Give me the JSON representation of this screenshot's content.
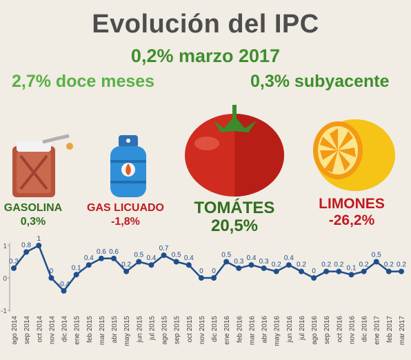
{
  "title": "Evolución del IPC",
  "headline": "0,2% marzo 2017",
  "stats": {
    "twelve_months": "2,7% doce meses",
    "core": "0,3% subyacente"
  },
  "items": [
    {
      "name": "GASOLINA",
      "value": "0,3%",
      "icon": "fuel-can-icon"
    },
    {
      "name": "GAS LICUADO",
      "value": "-1,8%",
      "icon": "gas-cylinder-icon"
    },
    {
      "name": "TOMÁTES",
      "value": "20,5%",
      "icon": "tomato-icon"
    },
    {
      "name": "LIMONES",
      "value": "-26,2%",
      "icon": "lemon-icon"
    }
  ],
  "colors": {
    "line": "#1f4e8c",
    "point": "#1f4e8c",
    "label": "#1f4e8c",
    "green_text": "#2f6e1e",
    "red_text": "#c0191f"
  },
  "chart_data": {
    "type": "line",
    "title": "",
    "xlabel": "",
    "ylabel": "",
    "ylim": [
      -1,
      1
    ],
    "yticks": [
      -1,
      0,
      1
    ],
    "grid": false,
    "categories": [
      "ago 2014",
      "sep 2014",
      "oct 2014",
      "nov 2014",
      "dic 2014",
      "ene 2015",
      "feb 2015",
      "mar 2015",
      "abr 2015",
      "may 2015",
      "jun 2015",
      "jul 2015",
      "ago 2015",
      "sep 2015",
      "oct 2015",
      "nov 2015",
      "dic 2015",
      "ene 2016",
      "feb 2016",
      "mar 2016",
      "abr 2016",
      "may 2016",
      "jun 2016",
      "jul 2016",
      "ago 2016",
      "sep 2016",
      "oct 2016",
      "nov 2016",
      "dic 2016",
      "ene 2017",
      "feb 2017",
      "mar 2017"
    ],
    "values": [
      0.3,
      0.8,
      1,
      0,
      -0.4,
      0.1,
      0.4,
      0.6,
      0.6,
      0.2,
      0.5,
      0.4,
      0.7,
      0.5,
      0.4,
      0,
      0,
      0.5,
      0.3,
      0.4,
      0.3,
      0.2,
      0.4,
      0.2,
      0,
      0.2,
      0.2,
      0.1,
      0.2,
      0.5,
      0.2,
      0.2
    ],
    "labels": [
      "0.3",
      "0.8",
      "1",
      "0",
      "-0.4",
      "0.1",
      "0.4",
      "0.6",
      "0.6",
      "0.2",
      "0.5",
      "0.4",
      "0.7",
      "0.5",
      "0.4",
      "0",
      "0",
      "0.5",
      "0.3",
      "0.4",
      "0.3",
      "0.2",
      "0.4",
      "0.2",
      "0",
      "0.2",
      "0.2",
      "0.1",
      "0.2",
      "0.5",
      "0.2",
      "0.2"
    ]
  }
}
